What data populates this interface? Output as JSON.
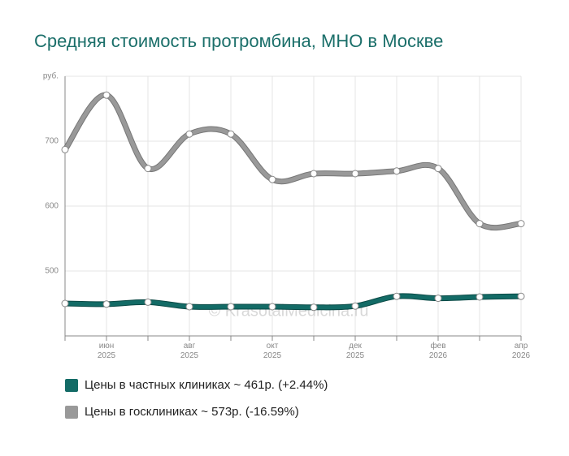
{
  "chart_data": {
    "type": "line",
    "title": "Средняя стоимость протромбина, МНО в Москве",
    "watermark": "© KrasotaiMedicina.ru",
    "categories": [
      null,
      "июн 2025",
      null,
      "авг 2025",
      null,
      "окт 2025",
      null,
      "дек 2025",
      null,
      "фев 2026",
      null,
      "апр 2026"
    ],
    "series": [
      {
        "name": "Цены в частных клиниках ~ 461р. (+2.44%)",
        "color": "#136b66",
        "values": [
          450,
          449,
          452,
          445,
          445,
          445,
          444,
          446,
          461,
          458,
          460,
          461
        ]
      },
      {
        "name": "Цены в госклиниках ~ 573р. (-16.59%)",
        "color": "#999999",
        "values": [
          687,
          771,
          658,
          711,
          711,
          641,
          650,
          650,
          654,
          658,
          573,
          573
        ]
      }
    ],
    "ylim": [
      400,
      800
    ],
    "yticks": [
      {
        "value": 800,
        "label": "руб."
      },
      700,
      600,
      500
    ],
    "grid": true
  }
}
